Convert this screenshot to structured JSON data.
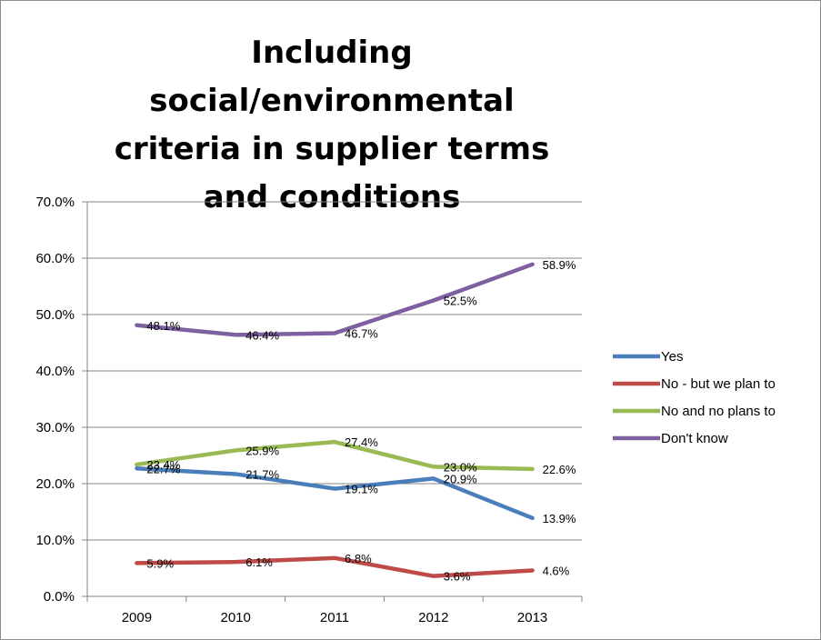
{
  "chart_data": {
    "type": "line",
    "title": "Including social/environmental criteria in supplier terms and conditions",
    "xlabel": "",
    "ylabel": "",
    "categories": [
      "2009",
      "2010",
      "2011",
      "2012",
      "2013"
    ],
    "ylim": [
      0,
      70
    ],
    "yticks": [
      "0.0%",
      "10.0%",
      "20.0%",
      "30.0%",
      "40.0%",
      "50.0%",
      "60.0%",
      "70.0%"
    ],
    "grid": true,
    "legend": "right",
    "series": [
      {
        "name": "Yes",
        "color": "#4a7ebb",
        "values": [
          22.7,
          21.7,
          19.1,
          20.9,
          13.9
        ],
        "labels": [
          "22.7%",
          "21.7%",
          "19.1%",
          "20.9%",
          "13.9%"
        ]
      },
      {
        "name": "No - but we plan to",
        "color": "#be4b48",
        "values": [
          5.9,
          6.1,
          6.8,
          3.6,
          4.6
        ],
        "labels": [
          "5.9%",
          "6.1%",
          "6.8%",
          "3.6%",
          "4.6%"
        ]
      },
      {
        "name": "No and no plans to",
        "color": "#98b954",
        "values": [
          23.4,
          25.9,
          27.4,
          23.0,
          22.6
        ],
        "labels": [
          "23.4%",
          "25.9%",
          "27.4%",
          "23.0%",
          "22.6%"
        ]
      },
      {
        "name": "Don't know",
        "color": "#7d60a0",
        "values": [
          48.1,
          46.4,
          46.7,
          52.5,
          58.9
        ],
        "labels": [
          "48.1%",
          "46.4%",
          "46.7%",
          "52.5%",
          "58.9%"
        ]
      }
    ]
  }
}
